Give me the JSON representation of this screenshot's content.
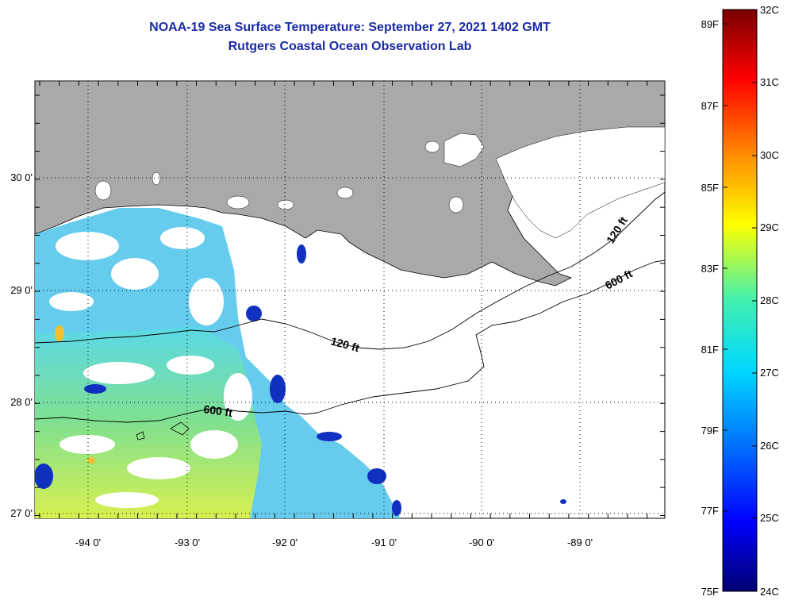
{
  "header": {
    "title": "NOAA-19 Sea Surface Temperature:  September 27, 2021 1402 GMT",
    "subtitle": "Rutgers Coastal Ocean Observation Lab"
  },
  "map": {
    "lon_labels": [
      "-94 0'",
      "-93 0'",
      "-92 0'",
      "-91 0'",
      "-90 0'",
      "-89 0'"
    ],
    "lat_labels": [
      "30 0'",
      "29 0'",
      "28 0'",
      "27 0'"
    ],
    "contours": [
      {
        "label": "120 ft"
      },
      {
        "label": "600 ft"
      },
      {
        "label": "120 ft"
      },
      {
        "label": "600 ft"
      }
    ],
    "colors": {
      "land": "#a9a9a9",
      "no_data": "#ffffff",
      "contour": "#000000"
    }
  },
  "colorbar": {
    "celsius_labels": [
      "32C",
      "31C",
      "30C",
      "29C",
      "28C",
      "27C",
      "26C",
      "25C",
      "24C"
    ],
    "fahrenheit_labels": [
      "89F",
      "87F",
      "85F",
      "83F",
      "81F",
      "79F",
      "77F",
      "75F"
    ],
    "stops": [
      "#800000",
      "#ff0000",
      "#ff8c00",
      "#ffff00",
      "#40ffc0",
      "#00e0ff",
      "#0080ff",
      "#0000ff",
      "#000080"
    ]
  }
}
